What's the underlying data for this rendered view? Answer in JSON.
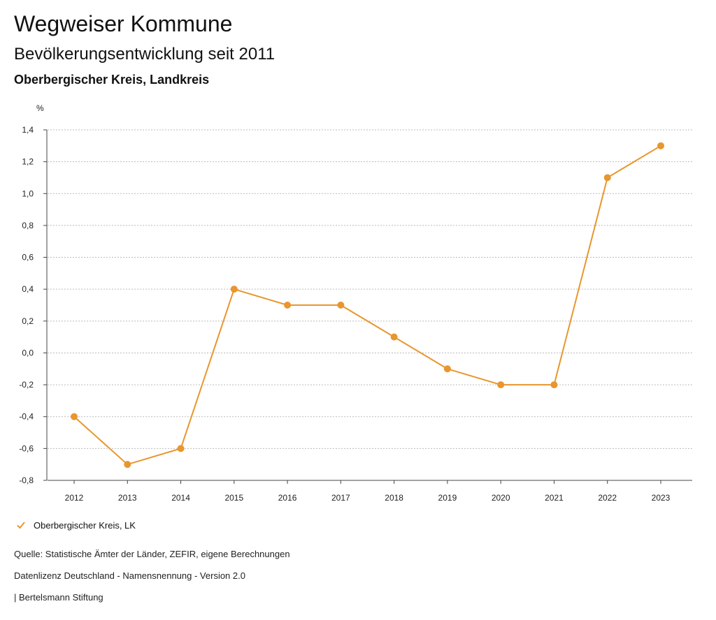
{
  "header": {
    "title": "Wegweiser Kommune",
    "subtitle": "Bevölkerungsentwicklung seit 2011",
    "region": "Oberbergischer Kreis, Landkreis"
  },
  "chart_data": {
    "type": "line",
    "unit_label": "%",
    "categories": [
      "2012",
      "2013",
      "2014",
      "2015",
      "2016",
      "2017",
      "2018",
      "2019",
      "2020",
      "2021",
      "2022",
      "2023"
    ],
    "series": [
      {
        "name": "Oberbergischer Kreis, LK",
        "color": "#E8962E",
        "values": [
          -0.4,
          -0.7,
          -0.6,
          0.4,
          0.3,
          0.3,
          0.1,
          -0.1,
          -0.2,
          -0.2,
          1.1,
          1.3
        ]
      }
    ],
    "ylim": [
      -0.8,
      1.4
    ],
    "yticks": [
      "-0,8",
      "-0,6",
      "-0,4",
      "-0,2",
      "0,0",
      "0,2",
      "0,4",
      "0,6",
      "0,8",
      "1,0",
      "1,2",
      "1,4"
    ],
    "ytick_values": [
      -0.8,
      -0.6,
      -0.4,
      -0.2,
      0.0,
      0.2,
      0.4,
      0.6,
      0.8,
      1.0,
      1.2,
      1.4
    ],
    "grid": true,
    "legend_position": "bottom-left"
  },
  "footer": {
    "source": "Quelle: Statistische Ämter der Länder, ZEFIR, eigene Berechnungen",
    "license": "Datenlizenz Deutschland - Namensnennung - Version 2.0",
    "brand": "| Bertelsmann Stiftung"
  }
}
